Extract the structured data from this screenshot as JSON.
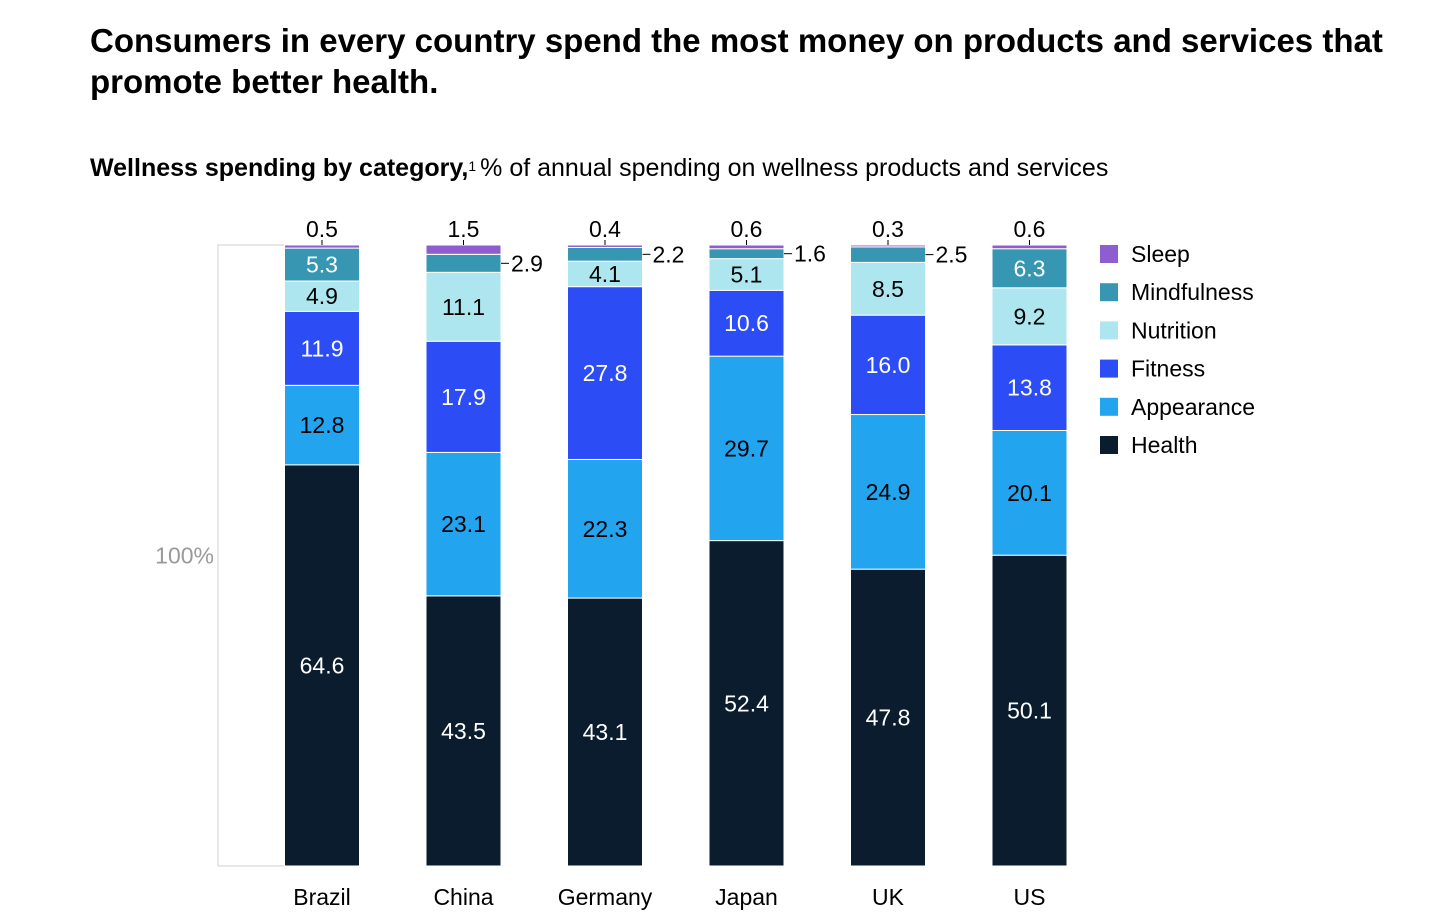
{
  "title": "Consumers in every country spend the most money on products and services that promote better health.",
  "subtitle": {
    "bold": "Wellness spending by category,",
    "footnote": "1",
    "rest": "% of annual spending on wellness products and services"
  },
  "chart_data": {
    "type": "bar",
    "stacked": true,
    "categories": [
      "Brazil",
      "China",
      "Germany",
      "Japan",
      "UK",
      "US"
    ],
    "series": [
      {
        "name": "Health",
        "color": "#0a1c2e",
        "label_color": "#ffffff",
        "values": [
          64.6,
          43.5,
          43.1,
          52.4,
          47.8,
          50.1
        ]
      },
      {
        "name": "Appearance",
        "color": "#22a4ee",
        "label_color": "#000000",
        "values": [
          12.8,
          23.1,
          22.3,
          29.7,
          24.9,
          20.1
        ]
      },
      {
        "name": "Fitness",
        "color": "#2c4cf5",
        "label_color": "#ffffff",
        "values": [
          11.9,
          17.9,
          27.8,
          10.6,
          16.0,
          13.8
        ]
      },
      {
        "name": "Nutrition",
        "color": "#ade6ee",
        "label_color": "#000000",
        "values": [
          4.9,
          11.1,
          4.1,
          5.1,
          8.5,
          9.2
        ]
      },
      {
        "name": "Mindfulness",
        "color": "#3797b2",
        "label_color": "#ffffff",
        "values": [
          5.3,
          2.9,
          2.2,
          1.6,
          2.5,
          6.3
        ]
      },
      {
        "name": "Sleep",
        "color": "#8e5ed1",
        "label_color": "#000000",
        "values": [
          0.5,
          1.5,
          0.4,
          0.6,
          0.3,
          0.6
        ]
      }
    ],
    "bracket_label": "100%",
    "legend_order": [
      "Sleep",
      "Mindfulness",
      "Nutrition",
      "Fitness",
      "Appearance",
      "Health"
    ],
    "legend_position": "right",
    "ylim": [
      0,
      100
    ],
    "grid": false
  }
}
